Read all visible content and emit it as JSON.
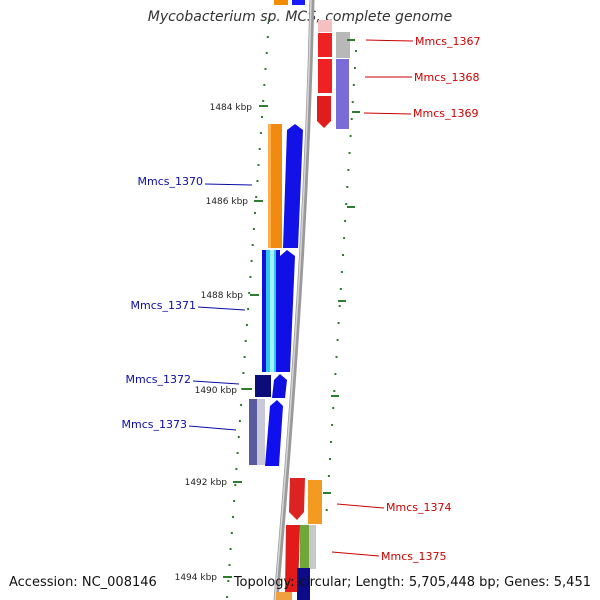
{
  "title": "Mycobacterium sp. MCS, complete genome",
  "footer": {
    "accession_label": "Accession:",
    "accession": "NC_008146",
    "topology_label": "Topology:",
    "topology": "circular",
    "length_label": "Length:",
    "length": "5,705,448 bp",
    "genes_label": "Genes:",
    "genes": "5,451"
  },
  "colors": {
    "backbone": "#8c8c8c",
    "tick": "#2e7d2e",
    "label_forward": "#0a0aa8",
    "label_reverse": "#cc0000"
  },
  "ticks": [
    {
      "label": "1484 kbp"
    },
    {
      "label": "1486 kbp"
    },
    {
      "label": "1488 kbp"
    },
    {
      "label": "1490 kbp"
    },
    {
      "label": "1492 kbp"
    },
    {
      "label": "1494 kbp"
    }
  ],
  "genes_left": [
    {
      "name": "Mmcs_1370"
    },
    {
      "name": "Mmcs_1371"
    },
    {
      "name": "Mmcs_1372"
    },
    {
      "name": "Mmcs_1373"
    }
  ],
  "genes_right": [
    {
      "name": "Mmcs_1367"
    },
    {
      "name": "Mmcs_1368"
    },
    {
      "name": "Mmcs_1369"
    },
    {
      "name": "Mmcs_1374"
    },
    {
      "name": "Mmcs_1375"
    }
  ]
}
